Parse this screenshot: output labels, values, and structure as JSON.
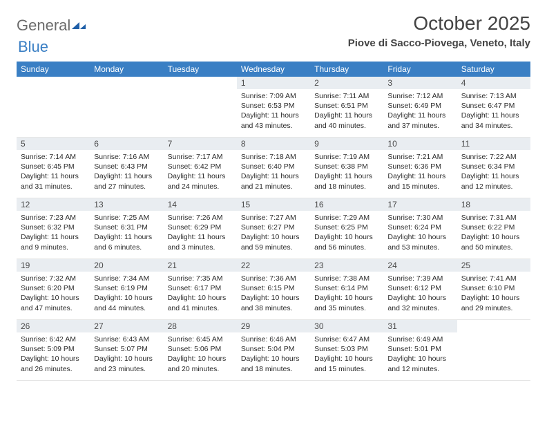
{
  "logo": {
    "text1": "General",
    "text2": "Blue"
  },
  "title": "October 2025",
  "location": "Piove di Sacco-Piovega, Veneto, Italy",
  "header_bg": "#3a7fc4",
  "daybar_bg": "#e9edf1",
  "weekdays": [
    "Sunday",
    "Monday",
    "Tuesday",
    "Wednesday",
    "Thursday",
    "Friday",
    "Saturday"
  ],
  "weeks": [
    [
      null,
      null,
      null,
      {
        "n": "1",
        "sunrise": "7:09 AM",
        "sunset": "6:53 PM",
        "dayh": "11",
        "daym": "43"
      },
      {
        "n": "2",
        "sunrise": "7:11 AM",
        "sunset": "6:51 PM",
        "dayh": "11",
        "daym": "40"
      },
      {
        "n": "3",
        "sunrise": "7:12 AM",
        "sunset": "6:49 PM",
        "dayh": "11",
        "daym": "37"
      },
      {
        "n": "4",
        "sunrise": "7:13 AM",
        "sunset": "6:47 PM",
        "dayh": "11",
        "daym": "34"
      }
    ],
    [
      {
        "n": "5",
        "sunrise": "7:14 AM",
        "sunset": "6:45 PM",
        "dayh": "11",
        "daym": "31"
      },
      {
        "n": "6",
        "sunrise": "7:16 AM",
        "sunset": "6:43 PM",
        "dayh": "11",
        "daym": "27"
      },
      {
        "n": "7",
        "sunrise": "7:17 AM",
        "sunset": "6:42 PM",
        "dayh": "11",
        "daym": "24"
      },
      {
        "n": "8",
        "sunrise": "7:18 AM",
        "sunset": "6:40 PM",
        "dayh": "11",
        "daym": "21"
      },
      {
        "n": "9",
        "sunrise": "7:19 AM",
        "sunset": "6:38 PM",
        "dayh": "11",
        "daym": "18"
      },
      {
        "n": "10",
        "sunrise": "7:21 AM",
        "sunset": "6:36 PM",
        "dayh": "11",
        "daym": "15"
      },
      {
        "n": "11",
        "sunrise": "7:22 AM",
        "sunset": "6:34 PM",
        "dayh": "11",
        "daym": "12"
      }
    ],
    [
      {
        "n": "12",
        "sunrise": "7:23 AM",
        "sunset": "6:32 PM",
        "dayh": "11",
        "daym": "9"
      },
      {
        "n": "13",
        "sunrise": "7:25 AM",
        "sunset": "6:31 PM",
        "dayh": "11",
        "daym": "6"
      },
      {
        "n": "14",
        "sunrise": "7:26 AM",
        "sunset": "6:29 PM",
        "dayh": "11",
        "daym": "3"
      },
      {
        "n": "15",
        "sunrise": "7:27 AM",
        "sunset": "6:27 PM",
        "dayh": "10",
        "daym": "59"
      },
      {
        "n": "16",
        "sunrise": "7:29 AM",
        "sunset": "6:25 PM",
        "dayh": "10",
        "daym": "56"
      },
      {
        "n": "17",
        "sunrise": "7:30 AM",
        "sunset": "6:24 PM",
        "dayh": "10",
        "daym": "53"
      },
      {
        "n": "18",
        "sunrise": "7:31 AM",
        "sunset": "6:22 PM",
        "dayh": "10",
        "daym": "50"
      }
    ],
    [
      {
        "n": "19",
        "sunrise": "7:32 AM",
        "sunset": "6:20 PM",
        "dayh": "10",
        "daym": "47"
      },
      {
        "n": "20",
        "sunrise": "7:34 AM",
        "sunset": "6:19 PM",
        "dayh": "10",
        "daym": "44"
      },
      {
        "n": "21",
        "sunrise": "7:35 AM",
        "sunset": "6:17 PM",
        "dayh": "10",
        "daym": "41"
      },
      {
        "n": "22",
        "sunrise": "7:36 AM",
        "sunset": "6:15 PM",
        "dayh": "10",
        "daym": "38"
      },
      {
        "n": "23",
        "sunrise": "7:38 AM",
        "sunset": "6:14 PM",
        "dayh": "10",
        "daym": "35"
      },
      {
        "n": "24",
        "sunrise": "7:39 AM",
        "sunset": "6:12 PM",
        "dayh": "10",
        "daym": "32"
      },
      {
        "n": "25",
        "sunrise": "7:41 AM",
        "sunset": "6:10 PM",
        "dayh": "10",
        "daym": "29"
      }
    ],
    [
      {
        "n": "26",
        "sunrise": "6:42 AM",
        "sunset": "5:09 PM",
        "dayh": "10",
        "daym": "26"
      },
      {
        "n": "27",
        "sunrise": "6:43 AM",
        "sunset": "5:07 PM",
        "dayh": "10",
        "daym": "23"
      },
      {
        "n": "28",
        "sunrise": "6:45 AM",
        "sunset": "5:06 PM",
        "dayh": "10",
        "daym": "20"
      },
      {
        "n": "29",
        "sunrise": "6:46 AM",
        "sunset": "5:04 PM",
        "dayh": "10",
        "daym": "18"
      },
      {
        "n": "30",
        "sunrise": "6:47 AM",
        "sunset": "5:03 PM",
        "dayh": "10",
        "daym": "15"
      },
      {
        "n": "31",
        "sunrise": "6:49 AM",
        "sunset": "5:01 PM",
        "dayh": "10",
        "daym": "12"
      },
      null
    ]
  ]
}
